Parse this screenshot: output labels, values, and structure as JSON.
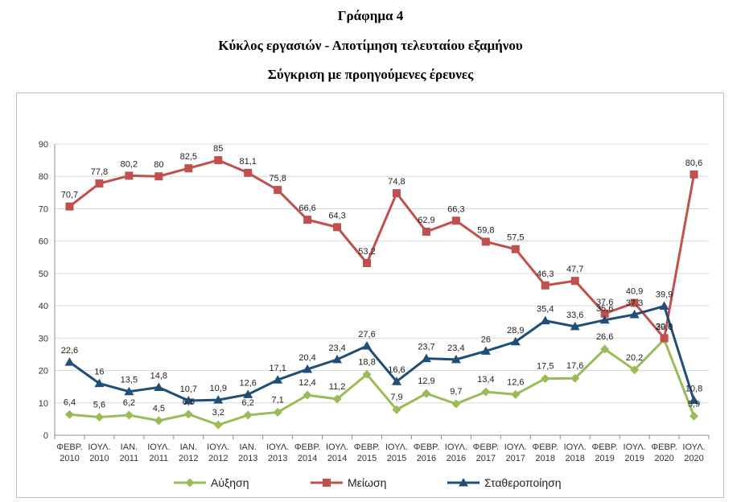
{
  "heading": {
    "line1": "Γράφημα 4",
    "line2": "Κύκλος εργασιών -  Αποτίμηση τελευταίου εξαμήνου",
    "line3": "Σύγκριση με προηγούμενες έρευνες"
  },
  "chart_data": {
    "type": "line",
    "categories": [
      [
        "ΦΕΒΡ.",
        "2010"
      ],
      [
        "ΙΟΥΛ.",
        "2010"
      ],
      [
        "ΙΑΝ.",
        "2011"
      ],
      [
        "ΙΟΥΛ.",
        "2011"
      ],
      [
        "ΙΑΝ.",
        "2012"
      ],
      [
        "ΙΟΥΛ.",
        "2012"
      ],
      [
        "ΙΑΝ.",
        "2013"
      ],
      [
        "ΙΟΥΛ.",
        "2013"
      ],
      [
        "ΦΕΒΡ.",
        "2014"
      ],
      [
        "ΙΟΥΛ.",
        "2014"
      ],
      [
        "ΦΕΒΡ.",
        "2015"
      ],
      [
        "ΙΟΥΛ.",
        "2015"
      ],
      [
        "ΦΕΒΡ.",
        "2016"
      ],
      [
        "ΙΟΥΛ.",
        "2016"
      ],
      [
        "ΦΕΒΡ.",
        "2017"
      ],
      [
        "ΙΟΥΛ.",
        "2017"
      ],
      [
        "ΦΕΒΡ.",
        "2018"
      ],
      [
        "ΙΟΥΛ.",
        "2018"
      ],
      [
        "ΦΕΒΡ.",
        "2019"
      ],
      [
        "ΙΟΥΛ.",
        "2019"
      ],
      [
        "ΦΕΒΡ.",
        "2020"
      ],
      [
        "ΙΟΥΛ.",
        "2020"
      ]
    ],
    "ylim": [
      0,
      90
    ],
    "yticks": [
      "0",
      "10",
      "20",
      "30",
      "40",
      "50",
      "60",
      "70",
      "80",
      "90"
    ],
    "grid": true,
    "legend_position": "bottom",
    "series": [
      {
        "name": "Αύξηση",
        "color": "#9bbb59",
        "marker": "diamond",
        "values": [
          6.4,
          5.6,
          6.2,
          4.5,
          6.5,
          3.2,
          6.2,
          7.1,
          12.4,
          11.2,
          18.8,
          7.9,
          12.9,
          9.7,
          13.4,
          12.6,
          17.5,
          17.6,
          26.6,
          20.2,
          29.6,
          5.9
        ],
        "labels": [
          "6,4",
          "5,6",
          "6,2",
          "4,5",
          "6,5",
          "3,2",
          "6,2",
          "7,1",
          "12,4",
          "11,2",
          "18,8",
          "7,9",
          "12,9",
          "9,7",
          "13,4",
          "12,6",
          "17,5",
          "17,6",
          "26,6",
          "20,2",
          "29,6",
          "5,9"
        ]
      },
      {
        "name": "Μείωση",
        "color": "#c0504d",
        "marker": "square",
        "values": [
          70.7,
          77.8,
          80.2,
          80,
          82.5,
          85,
          81.1,
          75.8,
          66.6,
          64.3,
          53.2,
          74.8,
          62.9,
          66.3,
          59.8,
          57.5,
          46.3,
          47.7,
          37.6,
          40.9,
          30.0,
          80.6
        ],
        "labels": [
          "70,7",
          "77,8",
          "80,2",
          "80",
          "82,5",
          "85",
          "81,1",
          "75,8",
          "66,6",
          "64,3",
          "53,2",
          "74,8",
          "62,9",
          "66,3",
          "59,8",
          "57,5",
          "46,3",
          "47,7",
          "37,6",
          "40,9",
          "30,0",
          "80,6"
        ]
      },
      {
        "name": "Σταθεροποίηση",
        "color": "#1f4e79",
        "marker": "triangle",
        "values": [
          22.6,
          16,
          13.5,
          14.8,
          10.7,
          10.9,
          12.6,
          17.1,
          20.4,
          23.4,
          27.6,
          16.6,
          23.7,
          23.4,
          26,
          28.9,
          35.4,
          33.6,
          35.6,
          37.3,
          39.9,
          10.8
        ],
        "labels": [
          "22,6",
          "16",
          "13,5",
          "14,8",
          "10,7",
          "10,9",
          "12,6",
          "17,1",
          "20,4",
          "23,4",
          "27,6",
          "16,6",
          "23,7",
          "23,4",
          "26",
          "28,9",
          "35,4",
          "33,6",
          "35,6",
          "37,3",
          "39,9",
          "10,8"
        ]
      }
    ]
  }
}
